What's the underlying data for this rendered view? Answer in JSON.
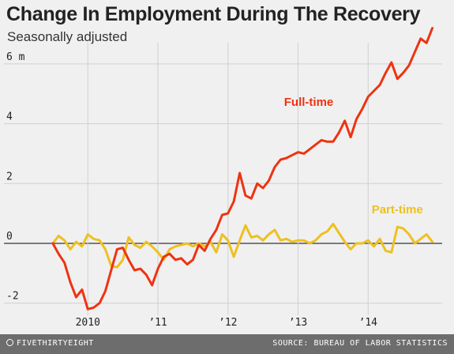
{
  "header": {
    "title": "Change In Employment During The Recovery",
    "subtitle": "Seasonally adjusted"
  },
  "footer": {
    "brand": "FIVETHIRTYEIGHT",
    "source": "SOURCE: BUREAU OF LABOR STATISTICS"
  },
  "colors": {
    "full_time": "#ee3311",
    "part_time": "#eec020",
    "grid": "#d0d0d0",
    "zero_line": "#333333",
    "text": "#222222"
  },
  "chart_data": {
    "type": "line",
    "title": "Change In Employment During The Recovery",
    "subtitle": "Seasonally adjusted",
    "xlabel": "",
    "ylabel": "",
    "ylim": [
      -2.3,
      6.5
    ],
    "yticks": [
      -2,
      0,
      2,
      4,
      6
    ],
    "ytick_labels": [
      "-2",
      "0",
      "2",
      "4",
      "6 m"
    ],
    "xlim": [
      2009.4,
      2015.0
    ],
    "xticks": [
      2010,
      2011,
      2012,
      2013,
      2014
    ],
    "xtick_labels": [
      "2010",
      "’11",
      "’12",
      "’13",
      "’14"
    ],
    "grid": true,
    "series": [
      {
        "name": "Full-time",
        "label_pos": [
          2012.8,
          4.6
        ],
        "x": [
          2009.5,
          2009.583,
          2009.667,
          2009.75,
          2009.833,
          2009.917,
          2010.0,
          2010.083,
          2010.167,
          2010.25,
          2010.333,
          2010.417,
          2010.5,
          2010.583,
          2010.667,
          2010.75,
          2010.833,
          2010.917,
          2011.0,
          2011.083,
          2011.167,
          2011.25,
          2011.333,
          2011.417,
          2011.5,
          2011.583,
          2011.667,
          2011.75,
          2011.833,
          2011.917,
          2012.0,
          2012.083,
          2012.167,
          2012.25,
          2012.333,
          2012.417,
          2012.5,
          2012.583,
          2012.667,
          2012.75,
          2012.833,
          2012.917,
          2013.0,
          2013.083,
          2013.167,
          2013.25,
          2013.333,
          2013.417,
          2013.5,
          2013.583,
          2013.667,
          2013.75,
          2013.833,
          2013.917,
          2014.0,
          2014.083,
          2014.167,
          2014.25,
          2014.333,
          2014.417,
          2014.5,
          2014.583,
          2014.667,
          2014.75,
          2014.833,
          2014.917
        ],
        "values": [
          0.0,
          -0.35,
          -0.65,
          -1.3,
          -1.8,
          -1.55,
          -2.2,
          -2.15,
          -2.0,
          -1.6,
          -0.9,
          -0.2,
          -0.15,
          -0.55,
          -0.9,
          -0.85,
          -1.05,
          -1.4,
          -0.85,
          -0.45,
          -0.35,
          -0.55,
          -0.5,
          -0.7,
          -0.55,
          -0.05,
          -0.25,
          0.15,
          0.45,
          0.95,
          1.0,
          1.4,
          2.35,
          1.6,
          1.5,
          2.0,
          1.85,
          2.1,
          2.55,
          2.8,
          2.85,
          2.95,
          3.05,
          3.0,
          3.15,
          3.3,
          3.45,
          3.4,
          3.4,
          3.7,
          4.1,
          3.55,
          4.15,
          4.5,
          4.9,
          5.1,
          5.3,
          5.7,
          6.05,
          5.5,
          5.7,
          5.95,
          6.4,
          6.85,
          6.7,
          7.2
        ]
      },
      {
        "name": "Part-time",
        "label_pos": [
          2014.05,
          1.0
        ],
        "x": [
          2009.5,
          2009.583,
          2009.667,
          2009.75,
          2009.833,
          2009.917,
          2010.0,
          2010.083,
          2010.167,
          2010.25,
          2010.333,
          2010.417,
          2010.5,
          2010.583,
          2010.667,
          2010.75,
          2010.833,
          2010.917,
          2011.0,
          2011.083,
          2011.167,
          2011.25,
          2011.333,
          2011.417,
          2011.5,
          2011.583,
          2011.667,
          2011.75,
          2011.833,
          2011.917,
          2012.0,
          2012.083,
          2012.167,
          2012.25,
          2012.333,
          2012.417,
          2012.5,
          2012.583,
          2012.667,
          2012.75,
          2012.833,
          2012.917,
          2013.0,
          2013.083,
          2013.167,
          2013.25,
          2013.333,
          2013.417,
          2013.5,
          2013.583,
          2013.667,
          2013.75,
          2013.833,
          2013.917,
          2014.0,
          2014.083,
          2014.167,
          2014.25,
          2014.333,
          2014.417,
          2014.5,
          2014.583,
          2014.667,
          2014.75,
          2014.833,
          2014.917
        ],
        "values": [
          0.0,
          0.25,
          0.1,
          -0.2,
          0.05,
          -0.1,
          0.3,
          0.15,
          0.1,
          -0.2,
          -0.75,
          -0.8,
          -0.55,
          0.2,
          -0.05,
          -0.15,
          0.05,
          -0.1,
          -0.3,
          -0.55,
          -0.2,
          -0.1,
          -0.05,
          0.0,
          -0.1,
          0.0,
          -0.1,
          0.05,
          -0.3,
          0.3,
          0.1,
          -0.45,
          0.1,
          0.6,
          0.2,
          0.25,
          0.1,
          0.3,
          0.45,
          0.1,
          0.15,
          0.05,
          0.1,
          0.1,
          0.0,
          0.1,
          0.3,
          0.4,
          0.65,
          0.35,
          0.05,
          -0.2,
          0.0,
          0.0,
          0.1,
          -0.1,
          0.15,
          -0.25,
          -0.3,
          0.55,
          0.5,
          0.3,
          0.0,
          0.15,
          0.3,
          0.05
        ]
      }
    ]
  }
}
